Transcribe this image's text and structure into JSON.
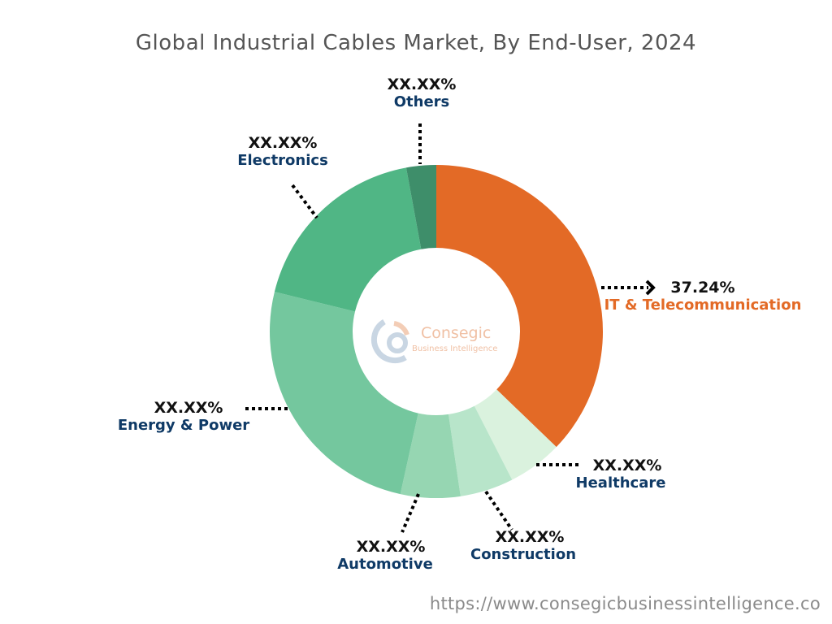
{
  "chart_data": {
    "type": "pie",
    "donut": true,
    "title": "Global Industrial Cables Market, By End-User, 2024",
    "categories": [
      "IT & Telecommunication",
      "Healthcare",
      "Construction",
      "Automotive",
      "Energy & Power",
      "Electronics",
      "Others"
    ],
    "values": [
      37.24,
      5.3,
      5.2,
      5.8,
      25.4,
      18.3,
      2.9
    ],
    "labels": [
      "37.24%",
      "XX.XX%",
      "XX.XX%",
      "XX.XX%",
      "XX.XX%",
      "XX.XX%",
      "XX.XX%"
    ],
    "colors": [
      "#e36a26",
      "#daf2de",
      "#b8e5ca",
      "#96d6b2",
      "#74c79e",
      "#50b685",
      "#3e8e6a"
    ],
    "legend": "none"
  },
  "logo": {
    "name": "Consegic",
    "tagline": "Business Intelligence"
  },
  "source_url": "https://www.consegicbusinessintelligence.co"
}
